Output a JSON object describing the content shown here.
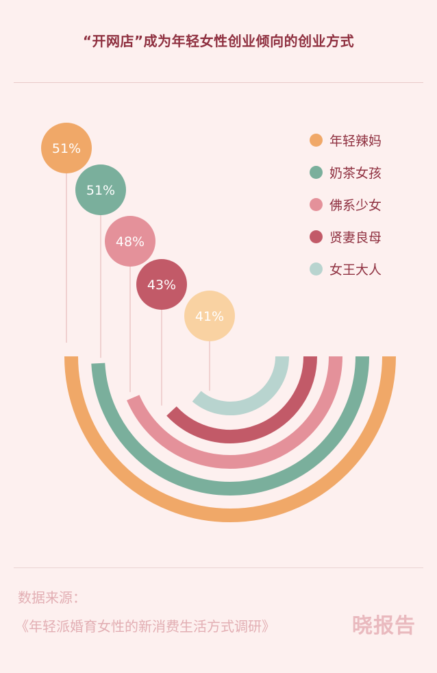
{
  "title": "“开网店”成为年轻女性创业倾向的创业方式",
  "chart_data": {
    "type": "radial-bar",
    "title": "“开网店”成为年轻女性创业倾向的创业方式",
    "unit": "%",
    "series": [
      {
        "name": "年轻辣妈",
        "value": 51,
        "label": "51%",
        "color": "#f0a868",
        "bubble": "#f0a868"
      },
      {
        "name": "奶茶女孩",
        "value": 51,
        "label": "51%",
        "color": "#7aaf9c",
        "bubble": "#7aaf9c"
      },
      {
        "name": "佛系少女",
        "value": 48,
        "label": "48%",
        "color": "#e4919a",
        "bubble": "#e4919a"
      },
      {
        "name": "贤妻良母",
        "value": 43,
        "label": "43%",
        "color": "#c25a68",
        "bubble": "#c25a68"
      },
      {
        "name": "女王大人",
        "value": 41,
        "label": "41%",
        "color": "#b8d4cf",
        "bubble": "#f9d2a2"
      }
    ]
  },
  "source": {
    "label": "数据来源：",
    "title": "《年轻派婚育女性的新消费生活方式调研》"
  },
  "brand": "晓报告"
}
